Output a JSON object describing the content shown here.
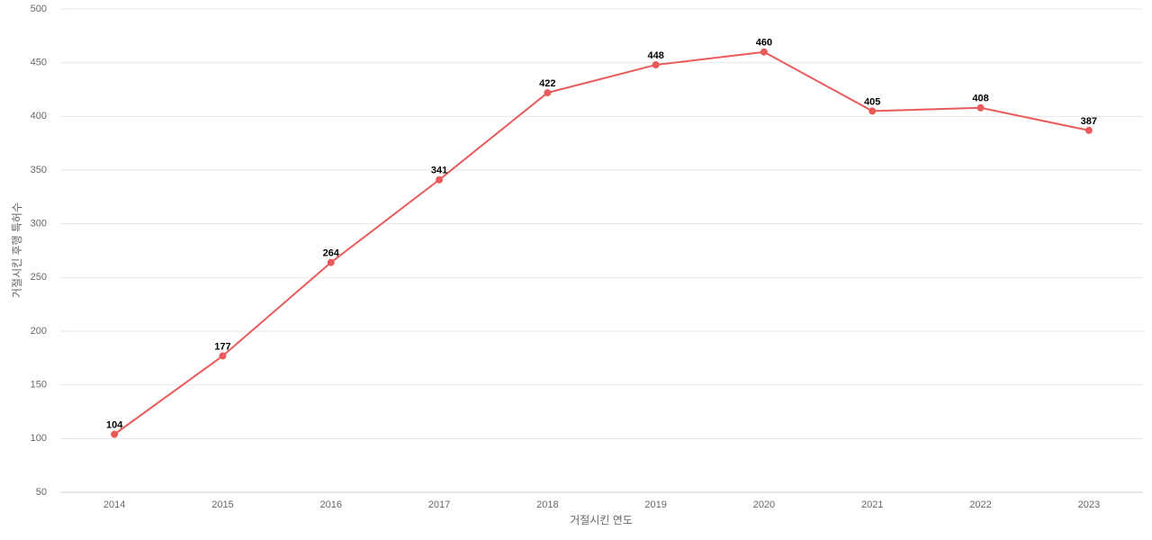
{
  "chart_data": {
    "type": "line",
    "x_label": "거절시킨 연도",
    "y_label": "거절시킨 후행 특허수",
    "categories": [
      "2014",
      "2015",
      "2016",
      "2017",
      "2018",
      "2019",
      "2020",
      "2021",
      "2022",
      "2023"
    ],
    "series": [
      {
        "name": "거절시킨 후행 특허수",
        "color": "#eb5a5a",
        "values": [
          104,
          177,
          264,
          341,
          422,
          448,
          460,
          405,
          408,
          387
        ]
      }
    ],
    "ylim": [
      50,
      500
    ],
    "yticks": [
      50,
      100,
      150,
      200,
      250,
      300,
      350,
      400,
      450,
      500
    ],
    "grid": true
  }
}
